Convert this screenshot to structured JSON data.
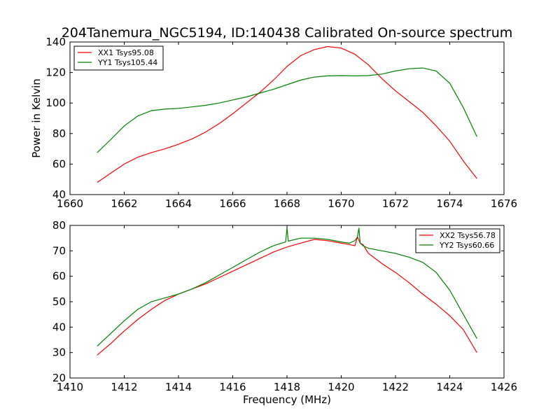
{
  "chart_data": [
    {
      "type": "line",
      "title": "204Tanemura_NGC5194, ID:140438 Calibrated On-source spectrum",
      "ylabel": "Power in Kelvin",
      "xlabel": "",
      "xlim": [
        1660,
        1676
      ],
      "ylim": [
        40,
        140
      ],
      "xticks": [
        "1660",
        "1662",
        "1664",
        "1666",
        "1668",
        "1670",
        "1672",
        "1674",
        "1676"
      ],
      "yticks": [
        "40",
        "60",
        "80",
        "100",
        "120",
        "140"
      ],
      "legend_position": "top-left",
      "series": [
        {
          "name": "XX1 Tsys95.08",
          "color": "#ff0000",
          "x": [
            1661.0,
            1661.5,
            1662.0,
            1662.5,
            1663.0,
            1663.5,
            1664.0,
            1664.5,
            1665.0,
            1665.5,
            1666.0,
            1666.5,
            1667.0,
            1667.5,
            1668.0,
            1668.5,
            1669.0,
            1669.5,
            1670.0,
            1670.5,
            1671.0,
            1671.5,
            1672.0,
            1672.5,
            1673.0,
            1673.5,
            1674.0,
            1674.5,
            1675.0
          ],
          "y": [
            48,
            54,
            60,
            64.5,
            67.5,
            70,
            73,
            76.5,
            81,
            86.5,
            93,
            100,
            107,
            115,
            124,
            131,
            135,
            137,
            136,
            132,
            125,
            116,
            108,
            101,
            94,
            85,
            75,
            62,
            50.5
          ]
        },
        {
          "name": "YY1 Tsys105.44",
          "color": "#008000",
          "x": [
            1661.0,
            1661.5,
            1662.0,
            1662.5,
            1663.0,
            1663.5,
            1664.0,
            1664.5,
            1665.0,
            1665.5,
            1666.0,
            1666.5,
            1667.0,
            1667.5,
            1668.0,
            1668.5,
            1669.0,
            1669.5,
            1670.0,
            1670.5,
            1671.0,
            1671.5,
            1672.0,
            1672.5,
            1673.0,
            1673.5,
            1674.0,
            1674.5,
            1675.0
          ],
          "y": [
            67.5,
            76,
            85,
            91.5,
            95,
            96,
            96.5,
            97.5,
            98.5,
            100,
            102,
            104,
            106.5,
            109,
            112,
            115,
            117,
            117.8,
            118,
            117.8,
            118,
            119,
            121,
            122.5,
            123,
            121,
            113,
            97,
            78
          ]
        }
      ]
    },
    {
      "type": "line",
      "title": "",
      "ylabel": "",
      "xlabel": "Frequency (MHz)",
      "xlim": [
        1410,
        1426
      ],
      "ylim": [
        20,
        80
      ],
      "xticks": [
        "1410",
        "1412",
        "1414",
        "1416",
        "1418",
        "1420",
        "1422",
        "1424",
        "1426"
      ],
      "yticks": [
        "20",
        "30",
        "40",
        "50",
        "60",
        "70",
        "80"
      ],
      "legend_position": "top-right",
      "series": [
        {
          "name": "XX2 Tsys56.78",
          "color": "#ff0000",
          "x": [
            1411.0,
            1411.5,
            1412.0,
            1412.5,
            1413.0,
            1413.5,
            1414.0,
            1414.5,
            1415.0,
            1415.5,
            1416.0,
            1416.5,
            1417.0,
            1417.5,
            1418.0,
            1418.5,
            1419.0,
            1419.5,
            1420.0,
            1420.3,
            1420.5,
            1420.6,
            1420.7,
            1420.8,
            1421.0,
            1421.5,
            1422.0,
            1422.5,
            1423.0,
            1423.5,
            1424.0,
            1424.5,
            1425.0
          ],
          "y": [
            29,
            33.5,
            38.5,
            43,
            47,
            50.5,
            53,
            55,
            57,
            59.5,
            62,
            64.5,
            67,
            69.5,
            71.5,
            73,
            74.5,
            74,
            73,
            72.5,
            72,
            75.5,
            73,
            72.5,
            69,
            65,
            61.5,
            57.5,
            53,
            49,
            44.5,
            39,
            30
          ]
        },
        {
          "name": "YY2 Tsys60.66",
          "color": "#008000",
          "x": [
            1411.0,
            1411.5,
            1412.0,
            1412.5,
            1413.0,
            1413.5,
            1414.0,
            1414.5,
            1415.0,
            1415.5,
            1416.0,
            1416.5,
            1417.0,
            1417.5,
            1417.95,
            1418.0,
            1418.05,
            1418.5,
            1419.0,
            1419.5,
            1420.0,
            1420.3,
            1420.5,
            1420.6,
            1420.65,
            1420.7,
            1420.8,
            1421.0,
            1421.5,
            1422.0,
            1422.5,
            1423.0,
            1423.5,
            1424.0,
            1424.5,
            1425.0
          ],
          "y": [
            32.5,
            37.5,
            42.5,
            47,
            50,
            51.5,
            53,
            55,
            57.5,
            60.5,
            63.5,
            66.5,
            69.5,
            72,
            73.5,
            79,
            73.8,
            75,
            75,
            74.5,
            73.5,
            73,
            74,
            75.5,
            79,
            73,
            72,
            71,
            70,
            69,
            67.5,
            65.5,
            61.5,
            54.5,
            45,
            35.5
          ]
        }
      ]
    }
  ]
}
